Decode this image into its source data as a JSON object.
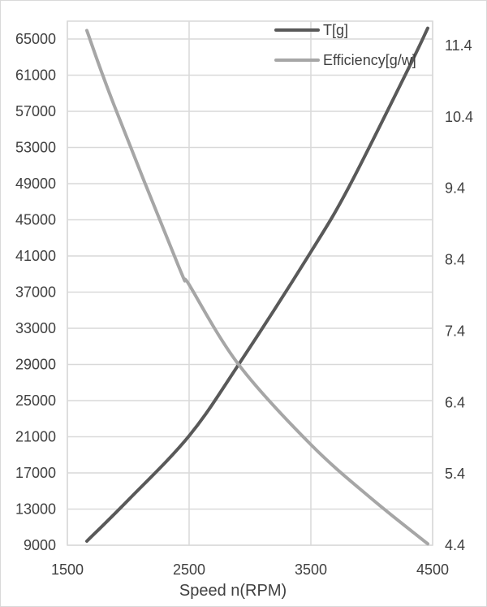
{
  "chart_data": {
    "type": "line",
    "title": "",
    "xlabel": "Speed n(RPM)",
    "ylabel": "",
    "y2label": "",
    "xlim": [
      1500,
      4500
    ],
    "ylim": [
      9000,
      66000
    ],
    "y2lim": [
      4.4,
      11.7
    ],
    "x_ticks": [
      1500,
      2500,
      3500,
      4500
    ],
    "y_ticks": [
      9000,
      13000,
      17000,
      21000,
      25000,
      29000,
      33000,
      37000,
      41000,
      45000,
      49000,
      53000,
      57000,
      61000,
      65000
    ],
    "y2_ticks": [
      4.4,
      5.4,
      6.4,
      7.4,
      8.4,
      9.4,
      10.4,
      11.4
    ],
    "grid": true,
    "legend_position": "top-right",
    "series": [
      {
        "name": "T[g]",
        "axis": "left",
        "color": "#595959",
        "x": [
          1660,
          2000,
          2500,
          2907,
          3500,
          3813,
          4300,
          4460
        ],
        "values": [
          9450,
          14000,
          21100,
          29000,
          41450,
          48650,
          61700,
          66200
        ]
      },
      {
        "name": "Efficiency[g/w]",
        "axis": "right",
        "color": "#a6a6a6",
        "x": [
          1660,
          1880,
          2413,
          2500,
          2907,
          3500,
          4000,
          4460
        ],
        "values": [
          11.61,
          10.58,
          8.31,
          8.05,
          6.93,
          5.81,
          5.05,
          4.42
        ]
      }
    ]
  }
}
